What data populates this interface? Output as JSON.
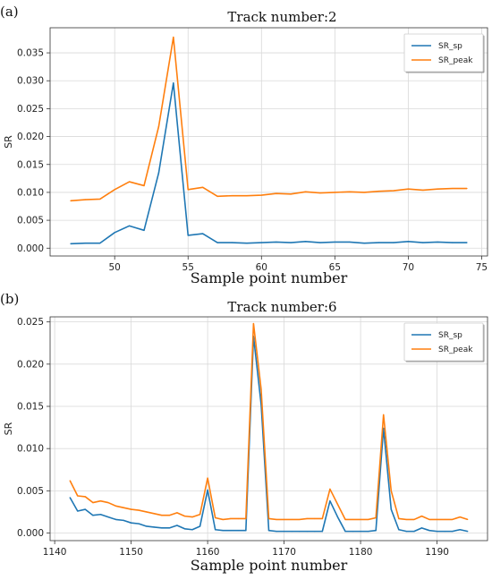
{
  "chart_data": [
    {
      "type": "line",
      "panel_label": "(a)",
      "title": "Track number:2",
      "xlabel": "Sample point number",
      "ylabel": "SR",
      "xlim": [
        45.6,
        75.4
      ],
      "ylim": [
        -0.0014,
        0.0395
      ],
      "xticks": [
        50,
        55,
        60,
        65,
        70,
        75
      ],
      "yticks": [
        0.0,
        0.005,
        0.01,
        0.015,
        0.02,
        0.025,
        0.03,
        0.035
      ],
      "ytick_labels": [
        "0.000",
        "0.005",
        "0.010",
        "0.015",
        "0.020",
        "0.025",
        "0.030",
        "0.035"
      ],
      "grid": true,
      "legend_position": "top-right",
      "x": [
        47,
        48,
        49,
        50,
        51,
        52,
        53,
        54,
        55,
        56,
        57,
        58,
        59,
        60,
        61,
        62,
        63,
        64,
        65,
        66,
        67,
        68,
        69,
        70,
        71,
        72,
        73,
        74
      ],
      "series": [
        {
          "name": "SR_sp",
          "color": "#1f77b4",
          "values": [
            0.0008,
            0.0009,
            0.0009,
            0.0028,
            0.004,
            0.0032,
            0.0135,
            0.0296,
            0.0023,
            0.0026,
            0.001,
            0.001,
            0.0009,
            0.001,
            0.0011,
            0.001,
            0.0012,
            0.001,
            0.0011,
            0.0011,
            0.0009,
            0.001,
            0.001,
            0.0012,
            0.001,
            0.0011,
            0.001,
            0.001
          ]
        },
        {
          "name": "SR_peak",
          "color": "#ff7f0e",
          "values": [
            0.0085,
            0.0087,
            0.0088,
            0.0105,
            0.0119,
            0.0112,
            0.0218,
            0.0378,
            0.0105,
            0.0109,
            0.0093,
            0.0094,
            0.0094,
            0.0095,
            0.0098,
            0.0097,
            0.0101,
            0.0099,
            0.01,
            0.0101,
            0.01,
            0.0102,
            0.0103,
            0.0106,
            0.0104,
            0.0106,
            0.0107,
            0.0107
          ]
        }
      ]
    },
    {
      "type": "line",
      "panel_label": "(b)",
      "title": "Track number:6",
      "xlabel": "Sample point number",
      "ylabel": "SR",
      "xlim": [
        1139.4,
        1196.6
      ],
      "ylim": [
        -0.0009,
        0.0256
      ],
      "xticks": [
        1140,
        1150,
        1160,
        1170,
        1180,
        1190
      ],
      "yticks": [
        0.0,
        0.005,
        0.01,
        0.015,
        0.02,
        0.025
      ],
      "ytick_labels": [
        "0.000",
        "0.005",
        "0.010",
        "0.015",
        "0.020",
        "0.025"
      ],
      "grid": true,
      "legend_position": "top-right",
      "x": [
        1142,
        1143,
        1144,
        1145,
        1146,
        1147,
        1148,
        1149,
        1150,
        1151,
        1152,
        1153,
        1154,
        1155,
        1156,
        1157,
        1158,
        1159,
        1160,
        1161,
        1162,
        1163,
        1164,
        1165,
        1166,
        1167,
        1168,
        1169,
        1170,
        1171,
        1172,
        1173,
        1174,
        1175,
        1176,
        1177,
        1178,
        1179,
        1180,
        1181,
        1182,
        1183,
        1184,
        1185,
        1186,
        1187,
        1188,
        1189,
        1190,
        1191,
        1192,
        1193,
        1194
      ],
      "series": [
        {
          "name": "SR_sp",
          "color": "#1f77b4",
          "values": [
            0.0042,
            0.0026,
            0.0028,
            0.0021,
            0.0022,
            0.0019,
            0.0016,
            0.0015,
            0.0012,
            0.0011,
            0.0008,
            0.0007,
            0.0006,
            0.0006,
            0.0009,
            0.0005,
            0.0004,
            0.0008,
            0.0051,
            0.0004,
            0.0003,
            0.0003,
            0.0003,
            0.0003,
            0.0233,
            0.0152,
            0.0003,
            0.0002,
            0.0002,
            0.0002,
            0.0002,
            0.0002,
            0.0002,
            0.0002,
            0.0038,
            0.0019,
            0.0002,
            0.0002,
            0.0002,
            0.0002,
            0.0003,
            0.0124,
            0.0028,
            0.0004,
            0.0002,
            0.0002,
            0.0006,
            0.0003,
            0.0002,
            0.0002,
            0.0002,
            0.0004,
            0.0002
          ]
        },
        {
          "name": "SR_peak",
          "color": "#ff7f0e",
          "values": [
            0.0062,
            0.0044,
            0.0043,
            0.0036,
            0.0038,
            0.0036,
            0.0032,
            0.003,
            0.0028,
            0.0027,
            0.0025,
            0.0023,
            0.0021,
            0.0021,
            0.0024,
            0.002,
            0.0019,
            0.0022,
            0.0065,
            0.0018,
            0.0016,
            0.0017,
            0.0017,
            0.0017,
            0.0248,
            0.017,
            0.0017,
            0.0016,
            0.0016,
            0.0016,
            0.0016,
            0.0017,
            0.0017,
            0.0017,
            0.0052,
            0.0034,
            0.0016,
            0.0016,
            0.0016,
            0.0016,
            0.0018,
            0.014,
            0.005,
            0.0017,
            0.0016,
            0.0016,
            0.002,
            0.0016,
            0.0016,
            0.0016,
            0.0016,
            0.0019,
            0.0016
          ]
        }
      ]
    }
  ]
}
